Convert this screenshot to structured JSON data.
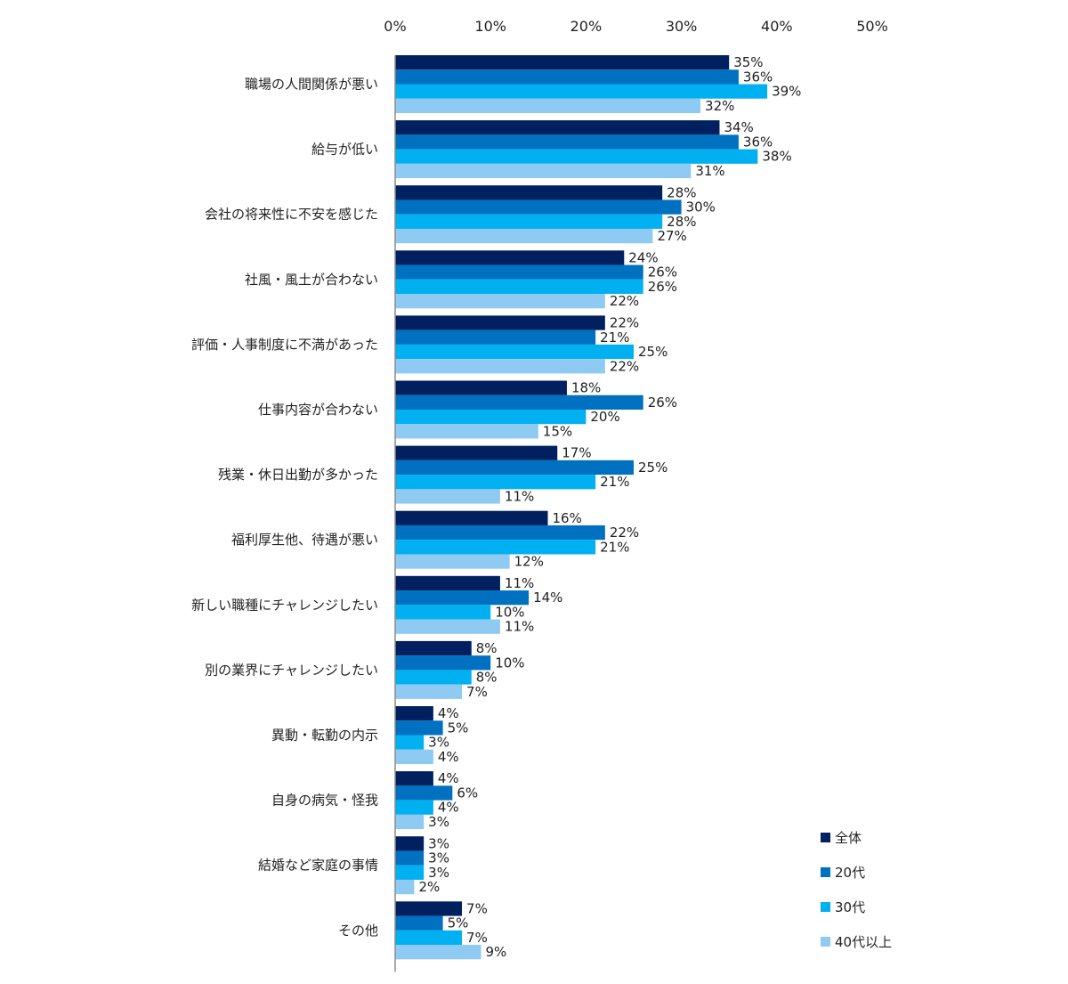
{
  "chart_data": {
    "type": "bar",
    "orientation": "horizontal",
    "title": "",
    "xlabel": "",
    "ylabel": "",
    "xlim": [
      0,
      50
    ],
    "ticks": [
      0,
      10,
      20,
      30,
      40,
      50
    ],
    "tick_labels": [
      "0%",
      "10%",
      "20%",
      "30%",
      "40%",
      "50%"
    ],
    "grid": false,
    "legend_position": "bottom-right",
    "unit_suffix": "%",
    "categories": [
      "職場の人間関係が悪い",
      "給与が低い",
      "会社の将来性に不安を感じた",
      "社風・風土が合わない",
      "評価・人事制度に不満があった",
      "仕事内容が合わない",
      "残業・休日出勤が多かった",
      "福利厚生他、待遇が悪い",
      "新しい職種にチャレンジしたい",
      "別の業界にチャレンジしたい",
      "異動・転勤の内示",
      "自身の病気・怪我",
      "結婚など家庭の事情",
      "その他"
    ],
    "series": [
      {
        "name": "全体",
        "color": "#002060",
        "values": [
          35,
          34,
          28,
          24,
          22,
          18,
          17,
          16,
          11,
          8,
          4,
          4,
          3,
          7
        ]
      },
      {
        "name": "20代",
        "color": "#0070C0",
        "values": [
          36,
          36,
          30,
          26,
          21,
          26,
          25,
          22,
          14,
          10,
          5,
          6,
          3,
          5
        ]
      },
      {
        "name": "30代",
        "color": "#00B0F0",
        "values": [
          39,
          38,
          28,
          26,
          25,
          20,
          21,
          21,
          10,
          8,
          3,
          4,
          3,
          7
        ]
      },
      {
        "name": "40代以上",
        "color": "#8FCAF2",
        "values": [
          32,
          31,
          27,
          22,
          22,
          15,
          11,
          12,
          11,
          7,
          4,
          3,
          2,
          9
        ]
      }
    ]
  }
}
